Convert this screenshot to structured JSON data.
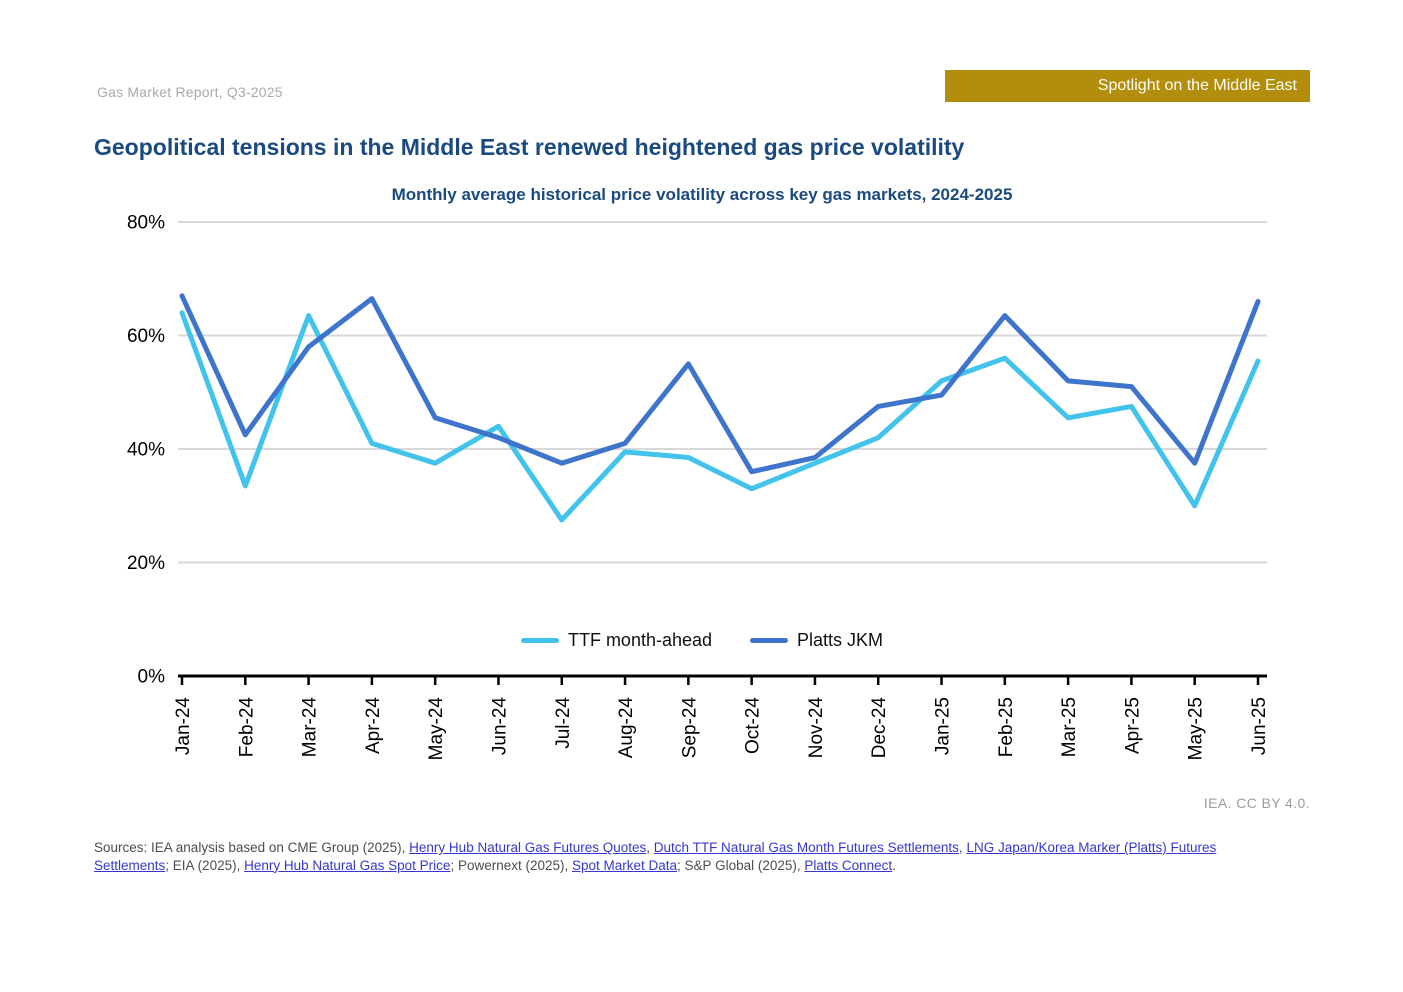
{
  "page": {
    "report_label": "Gas Market Report, Q3-2025",
    "spotlight_badge": "Spotlight on the Middle East",
    "title": "Geopolitical tensions in the Middle East renewed heightened gas price volatility",
    "attribution": "IEA. CC BY 4.0."
  },
  "chart_data": {
    "type": "line",
    "title": "Monthly average historical price volatility across key gas markets, 2024-2025",
    "categories": [
      "Jan-24",
      "Feb-24",
      "Mar-24",
      "Apr-24",
      "May-24",
      "Jun-24",
      "Jul-24",
      "Aug-24",
      "Sep-24",
      "Oct-24",
      "Nov-24",
      "Dec-24",
      "Jan-25",
      "Feb-25",
      "Mar-25",
      "Apr-25",
      "May-25",
      "Jun-25"
    ],
    "series": [
      {
        "name": "TTF month-ahead",
        "color": "#41C3EB",
        "values": [
          64,
          33.5,
          63.5,
          41,
          37.5,
          44,
          27.5,
          39.5,
          38.5,
          33,
          37.5,
          42,
          52,
          56,
          45.5,
          47.5,
          30,
          55.5
        ]
      },
      {
        "name": "Platts JKM",
        "color": "#3E74CB",
        "values": [
          67,
          42.5,
          58,
          66.5,
          45.5,
          42,
          37.5,
          41,
          55,
          36,
          38.5,
          47.5,
          49.5,
          63.5,
          52,
          51,
          37.5,
          66
        ]
      }
    ],
    "xlabel": "",
    "ylabel": "",
    "ylim": [
      0,
      80
    ],
    "y_ticks": [
      {
        "value": 0,
        "label": "0%"
      },
      {
        "value": 20,
        "label": "20%"
      },
      {
        "value": 40,
        "label": "40%"
      },
      {
        "value": 60,
        "label": "60%"
      },
      {
        "value": 80,
        "label": "80%"
      }
    ],
    "grid": "horizontal",
    "legend_position": "bottom-inside",
    "x_label_rotation": -90
  },
  "sources": {
    "segments": [
      {
        "text": "Sources: IEA analysis based on CME Group (2025), ",
        "link": false
      },
      {
        "text": "Henry Hub Natural Gas Futures Quotes",
        "link": true
      },
      {
        "text": ", ",
        "link": false
      },
      {
        "text": "Dutch TTF Natural Gas Month Futures Settlements",
        "link": true
      },
      {
        "text": ", ",
        "link": false
      },
      {
        "text": "LNG Japan/Korea Marker (Platts) Futures Settlements",
        "link": true
      },
      {
        "text": "; EIA (2025), ",
        "link": false
      },
      {
        "text": "Henry Hub Natural Gas Spot Price",
        "link": true
      },
      {
        "text": "; Powernext (2025), ",
        "link": false
      },
      {
        "text": "Spot Market Data",
        "link": true
      },
      {
        "text": "; S&P Global (2025), ",
        "link": false
      },
      {
        "text": "Platts Connect",
        "link": true
      },
      {
        "text": ".",
        "link": false
      }
    ]
  },
  "colors": {
    "accent_gold": "#B28E0C",
    "navy_title": "#1A4A80",
    "grid": "#D8D8D8",
    "axis": "#000000",
    "link": "#3737CE",
    "ttf_line": "#41C3EB",
    "jkm_line": "#3E74CB"
  }
}
